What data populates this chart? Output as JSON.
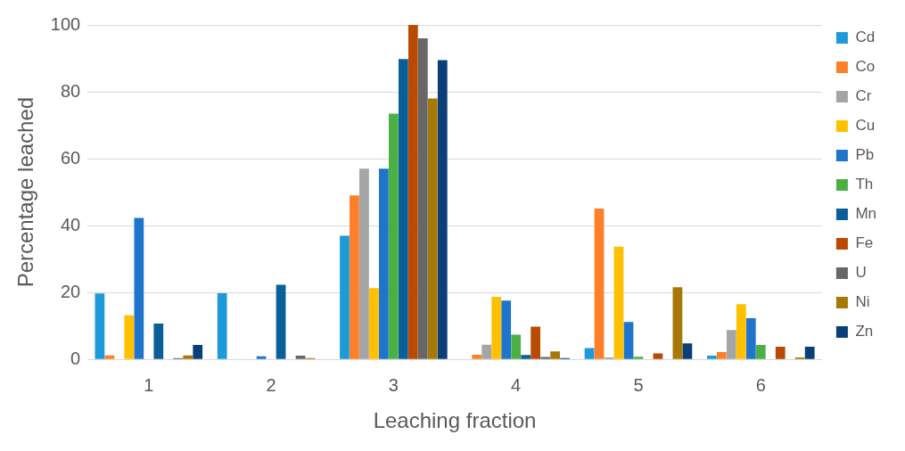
{
  "chart_data": {
    "type": "bar",
    "xlabel": "Leaching fraction",
    "ylabel": "Percentage leached",
    "categories": [
      "1",
      "2",
      "3",
      "4",
      "5",
      "6"
    ],
    "series": [
      {
        "name": "Cd",
        "color": "#1f9ad9",
        "values": [
          19.7,
          19.8,
          37,
          0,
          3.4,
          1.1
        ]
      },
      {
        "name": "Co",
        "color": "#fd7f2a",
        "values": [
          1.2,
          0,
          49,
          1.4,
          45.1,
          2.2
        ]
      },
      {
        "name": "Cr",
        "color": "#a5a5a5",
        "values": [
          0,
          0,
          57,
          4.4,
          0.6,
          8.8
        ]
      },
      {
        "name": "Cu",
        "color": "#ffc000",
        "values": [
          13.2,
          0,
          21.3,
          18.7,
          33.7,
          16.5
        ]
      },
      {
        "name": "Pb",
        "color": "#1f74cc",
        "values": [
          42.3,
          0.9,
          57,
          17.6,
          11.2,
          12.3
        ]
      },
      {
        "name": "Th",
        "color": "#4caf45",
        "values": [
          0,
          0,
          73.5,
          7.4,
          0.8,
          4.3
        ]
      },
      {
        "name": "Mn",
        "color": "#0a5f98",
        "values": [
          10.7,
          22.3,
          89.8,
          1.3,
          0,
          0
        ]
      },
      {
        "name": "Fe",
        "color": "#b84a04",
        "values": [
          0,
          0,
          100,
          9.8,
          1.8,
          3.8
        ]
      },
      {
        "name": "U",
        "color": "#676767",
        "values": [
          0.4,
          1.1,
          96,
          0.7,
          0,
          0
        ]
      },
      {
        "name": "Ni",
        "color": "#a87806",
        "values": [
          1.2,
          0.4,
          78,
          2.4,
          21.6,
          0.6
        ]
      },
      {
        "name": "Zn",
        "color": "#0b3f78",
        "values": [
          4.3,
          0,
          89.5,
          0.4,
          4.8,
          3.8
        ]
      }
    ],
    "ylim": [
      0,
      100
    ],
    "yticks": [
      0,
      20,
      40,
      60,
      80,
      100
    ],
    "grid": "y",
    "legend": "right"
  }
}
